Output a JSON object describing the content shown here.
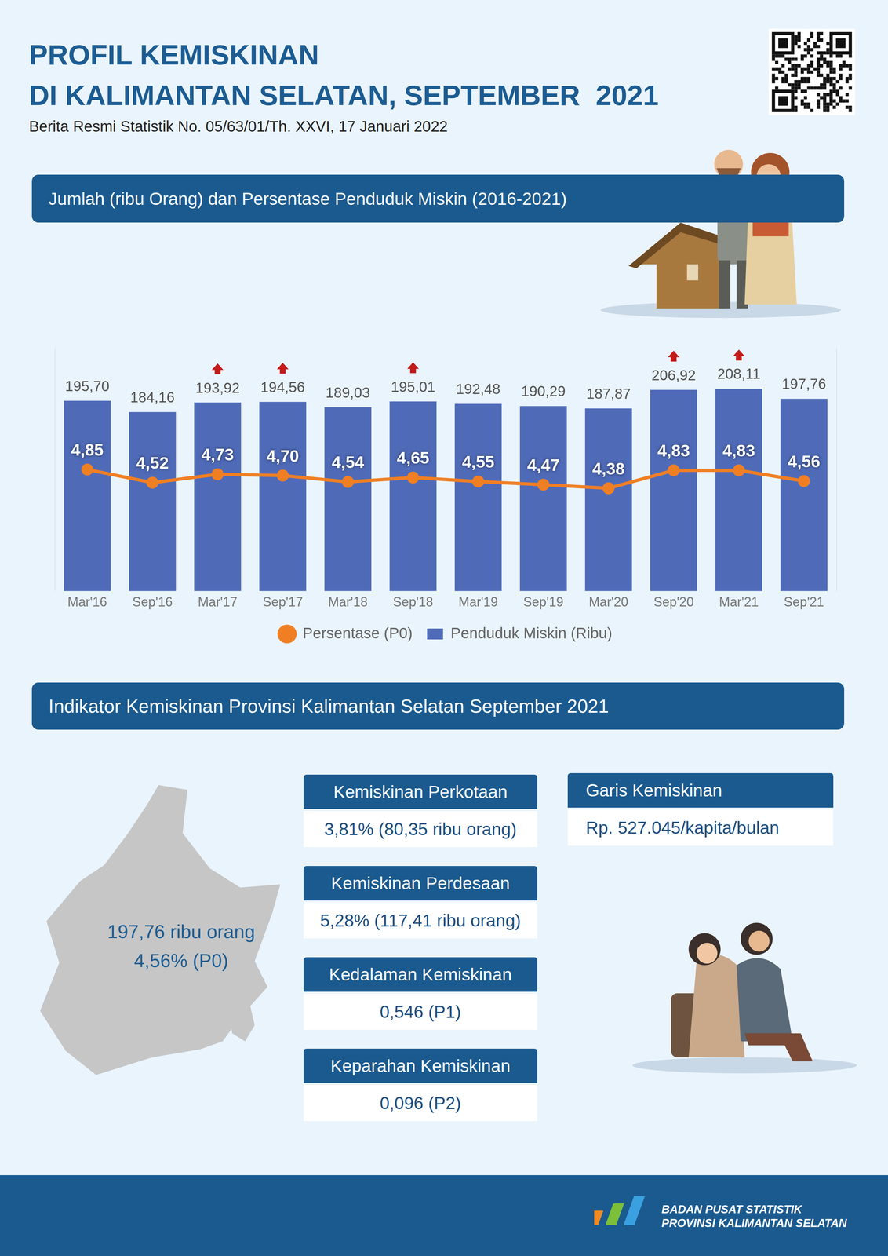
{
  "header": {
    "title_lines": [
      "PROFIL KEMISKINAN",
      "DI KALIMANTAN SELATAN, SEPTEMBER  2021"
    ],
    "subtitle": "Berita Resmi Statistik No. 05/63/01/Th. XXVI, 17 Januari 2022"
  },
  "chart_data": {
    "type": "bar",
    "title": "Jumlah (ribu Orang) dan Persentase Penduduk Miskin (2016-2021)",
    "categories": [
      "Mar'16",
      "Sep'16",
      "Mar'17",
      "Sep'17",
      "Mar'18",
      "Sep'18",
      "Mar'19",
      "Sep'19",
      "Mar'20",
      "Sep'20",
      "Mar'21",
      "Sep'21"
    ],
    "series": [
      {
        "name": "Penduduk Miskin (Ribu)",
        "type": "bar",
        "color": "#4f6bb8",
        "values": [
          195.7,
          184.16,
          193.92,
          194.56,
          189.03,
          195.01,
          192.48,
          190.29,
          187.87,
          206.92,
          208.11,
          197.76
        ],
        "value_labels": [
          "195,70",
          "184,16",
          "193,92",
          "194,56",
          "189,03",
          "195,01",
          "192,48",
          "190,29",
          "187,87",
          "206,92",
          "208,11",
          "197,76"
        ]
      },
      {
        "name": "Persentase (P0)",
        "type": "line",
        "axis": "y2",
        "color": "#f07f24",
        "marker": "circle",
        "values": [
          4.85,
          4.52,
          4.73,
          4.7,
          4.54,
          4.65,
          4.55,
          4.47,
          4.38,
          4.83,
          4.83,
          4.56
        ],
        "value_labels": [
          "4,85",
          "4,52",
          "4,73",
          "4,70",
          "4,54",
          "4,65",
          "4,55",
          "4,47",
          "4,38",
          "4,83",
          "4,83",
          "4,56"
        ]
      }
    ],
    "ylim": [
      0,
      250
    ],
    "y2lim": [
      1.8,
      7.9
    ],
    "grid": false,
    "data_labels": true,
    "tick_labels": "x",
    "legend": "bottom"
  },
  "indicators": {
    "title": "Indikator Kemiskinan Provinsi Kalimantan Selatan September 2021",
    "map_label": [
      "197,76 ribu orang",
      "4,56% (P0)"
    ],
    "boxes": [
      {
        "label": "Kemiskinan Perkotaan",
        "value": "3,81% (80,35 ribu orang)"
      },
      {
        "label": "Kemiskinan Perdesaan",
        "value": "5,28% (117,41 ribu orang)"
      },
      {
        "label": "Kedalaman Kemiskinan",
        "value": "0,546 (P1)"
      },
      {
        "label": "Keparahan Kemiskinan",
        "value": "0,096 (P2)"
      }
    ],
    "side_box": {
      "label": "Garis Kemiskinan",
      "value": "Rp. 527.045/kapita/bulan"
    }
  },
  "footer": {
    "lines": [
      "BADAN PUSAT STATISTIK",
      "PROVINSI KALIMANTAN SELATAN"
    ]
  }
}
